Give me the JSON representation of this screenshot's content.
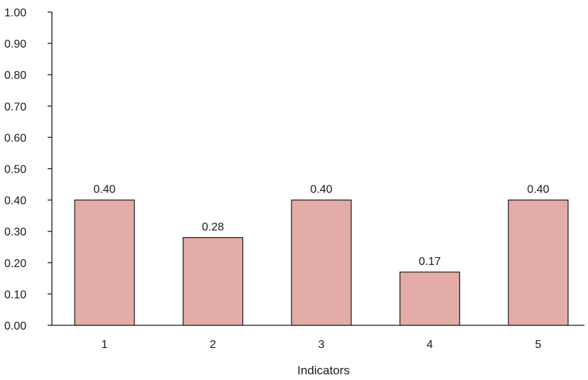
{
  "chart_data": {
    "type": "bar",
    "title": "",
    "xlabel": "Indicators",
    "ylabel": "",
    "categories": [
      "1",
      "2",
      "3",
      "4",
      "5"
    ],
    "values": [
      0.4,
      0.28,
      0.4,
      0.17,
      0.4
    ],
    "value_labels": [
      "0.40",
      "0.28",
      "0.40",
      "0.17",
      "0.40"
    ],
    "ylim": [
      0,
      1
    ],
    "yticks": [
      "0.00",
      "0.10",
      "0.20",
      "0.30",
      "0.40",
      "0.50",
      "0.60",
      "0.70",
      "0.80",
      "0.90",
      "1.00"
    ],
    "grid": false,
    "legend": "none",
    "colors": {
      "bar_fill": "#e3aca6",
      "bar_stroke": "#1a1a1a",
      "axis": "#1a1a1a"
    }
  }
}
